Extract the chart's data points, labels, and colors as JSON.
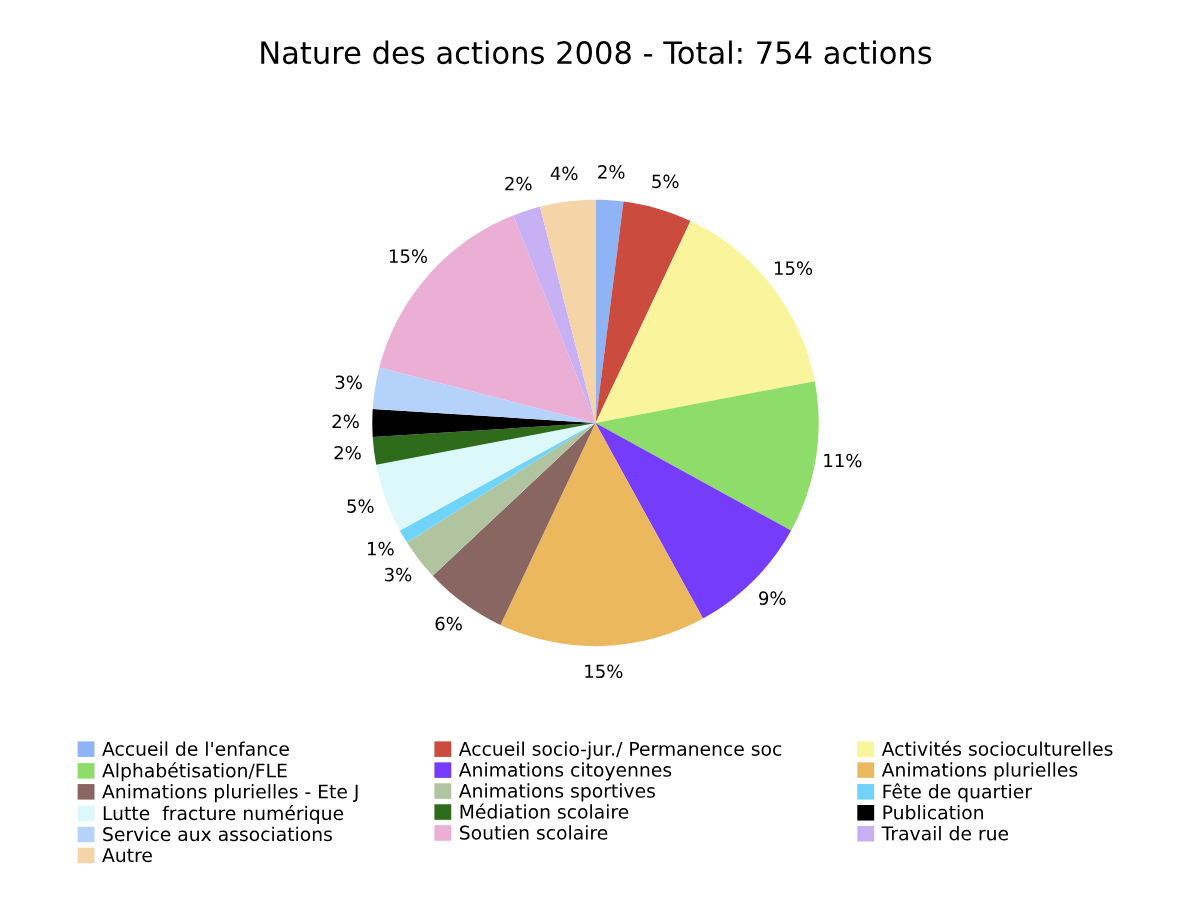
{
  "chart_data": {
    "type": "pie",
    "title": "Nature des actions 2008 - Total: 754 actions",
    "categories": [
      "Accueil de l'enfance",
      "Accueil socio-jur./ Permanence soc",
      "Activités socioculturelles",
      "Alphabétisation/FLE",
      "Animations citoyennes",
      "Animations plurielles",
      "Animations plurielles - Ete J",
      "Animations sportives",
      "Fête de quartier",
      "Lutte  fracture numérique",
      "Médiation scolaire",
      "Publication",
      "Service aux associations",
      "Soutien scolaire",
      "Travail de rue",
      "Autre"
    ],
    "values": [
      2,
      5,
      15,
      11,
      9,
      15,
      6,
      3,
      1,
      5,
      2,
      2,
      3,
      15,
      2,
      4
    ],
    "value_labels": [
      "2%",
      "5%",
      "15%",
      "11%",
      "9%",
      "15%",
      "6%",
      "3%",
      "1%",
      "5%",
      "2%",
      "2%",
      "3%",
      "15%",
      "2%",
      "4%"
    ],
    "colors": [
      "#8fb4f5",
      "#cc4b3f",
      "#faf59c",
      "#8edc6a",
      "#763cfc",
      "#ebb85e",
      "#8a6662",
      "#b0c4a0",
      "#6fd3fa",
      "#dcf8fb",
      "#2e6b1a",
      "#000000",
      "#b5d2fa",
      "#ebaed5",
      "#c8b0f5",
      "#f5d5a8"
    ],
    "legend": "bottom"
  }
}
